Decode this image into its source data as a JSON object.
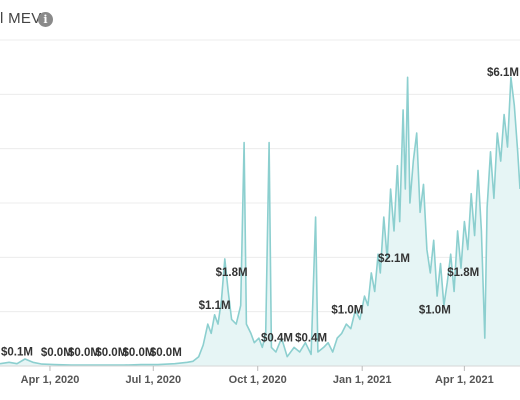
{
  "header": {
    "title": "l MEV",
    "info_icon": "info-icon",
    "info_glyph": "i"
  },
  "chart_data": {
    "type": "area",
    "title": "l MEV",
    "xlabel": "",
    "ylabel": "",
    "grid": true,
    "color": "#8ccfcf",
    "fill": "#e6f5f5",
    "x_range": [
      "2020-02-17",
      "2021-05-20"
    ],
    "y_range": [
      0,
      7.0
    ],
    "x_ticks": [
      {
        "date": "2020-04-01",
        "label": "Apr 1, 2020"
      },
      {
        "date": "2020-07-01",
        "label": "Jul 1, 2020"
      },
      {
        "date": "2020-10-01",
        "label": "Oct 1, 2020"
      },
      {
        "date": "2021-01-01",
        "label": "Jan 1, 2021"
      },
      {
        "date": "2021-04-01",
        "label": "Apr 1, 2021"
      }
    ],
    "series": [
      {
        "points": [
          [
            "2020-02-17",
            0.05
          ],
          [
            "2020-02-25",
            0.08
          ],
          [
            "2020-03-03",
            0.05
          ],
          [
            "2020-03-10",
            0.15
          ],
          [
            "2020-03-17",
            0.08
          ],
          [
            "2020-03-25",
            0.04
          ],
          [
            "2020-04-05",
            0.03
          ],
          [
            "2020-04-20",
            0.02
          ],
          [
            "2020-05-05",
            0.02
          ],
          [
            "2020-05-20",
            0.02
          ],
          [
            "2020-06-05",
            0.02
          ],
          [
            "2020-06-20",
            0.03
          ],
          [
            "2020-07-05",
            0.03
          ],
          [
            "2020-07-20",
            0.05
          ],
          [
            "2020-07-31",
            0.08
          ],
          [
            "2020-08-05",
            0.1
          ],
          [
            "2020-08-10",
            0.2
          ],
          [
            "2020-08-14",
            0.45
          ],
          [
            "2020-08-18",
            0.9
          ],
          [
            "2020-08-21",
            0.7
          ],
          [
            "2020-08-24",
            1.1
          ],
          [
            "2020-08-27",
            0.9
          ],
          [
            "2020-08-30",
            1.4
          ],
          [
            "2020-09-02",
            2.3
          ],
          [
            "2020-09-05",
            1.6
          ],
          [
            "2020-09-08",
            1.0
          ],
          [
            "2020-09-12",
            0.9
          ],
          [
            "2020-09-16",
            1.3
          ],
          [
            "2020-09-19",
            4.8
          ],
          [
            "2020-09-21",
            0.9
          ],
          [
            "2020-09-25",
            0.7
          ],
          [
            "2020-09-28",
            0.5
          ],
          [
            "2020-10-02",
            0.6
          ],
          [
            "2020-10-05",
            0.4
          ],
          [
            "2020-10-08",
            0.7
          ],
          [
            "2020-10-11",
            4.8
          ],
          [
            "2020-10-13",
            0.4
          ],
          [
            "2020-10-17",
            0.3
          ],
          [
            "2020-10-22",
            0.6
          ],
          [
            "2020-10-27",
            0.2
          ],
          [
            "2020-11-02",
            0.4
          ],
          [
            "2020-11-07",
            0.3
          ],
          [
            "2020-11-12",
            0.5
          ],
          [
            "2020-11-17",
            0.25
          ],
          [
            "2020-11-21",
            3.2
          ],
          [
            "2020-11-23",
            0.3
          ],
          [
            "2020-11-28",
            0.4
          ],
          [
            "2020-12-02",
            0.5
          ],
          [
            "2020-12-06",
            0.3
          ],
          [
            "2020-12-10",
            0.6
          ],
          [
            "2020-12-14",
            0.7
          ],
          [
            "2020-12-18",
            0.9
          ],
          [
            "2020-12-22",
            0.8
          ],
          [
            "2020-12-26",
            1.2
          ],
          [
            "2020-12-30",
            1.0
          ],
          [
            "2021-01-03",
            1.5
          ],
          [
            "2021-01-06",
            1.3
          ],
          [
            "2021-01-09",
            2.0
          ],
          [
            "2021-01-12",
            1.6
          ],
          [
            "2021-01-15",
            2.4
          ],
          [
            "2021-01-17",
            2.0
          ],
          [
            "2021-01-20",
            3.2
          ],
          [
            "2021-01-23",
            2.3
          ],
          [
            "2021-01-26",
            3.8
          ],
          [
            "2021-01-29",
            2.9
          ],
          [
            "2021-02-01",
            4.3
          ],
          [
            "2021-02-03",
            3.1
          ],
          [
            "2021-02-06",
            5.5
          ],
          [
            "2021-02-08",
            3.8
          ],
          [
            "2021-02-10",
            6.2
          ],
          [
            "2021-02-12",
            3.5
          ],
          [
            "2021-02-15",
            4.4
          ],
          [
            "2021-02-18",
            5.0
          ],
          [
            "2021-02-21",
            3.3
          ],
          [
            "2021-02-24",
            3.9
          ],
          [
            "2021-02-27",
            2.5
          ],
          [
            "2021-03-02",
            2.0
          ],
          [
            "2021-03-05",
            2.7
          ],
          [
            "2021-03-08",
            1.5
          ],
          [
            "2021-03-11",
            2.2
          ],
          [
            "2021-03-14",
            1.3
          ],
          [
            "2021-03-17",
            1.8
          ],
          [
            "2021-03-20",
            2.4
          ],
          [
            "2021-03-23",
            1.6
          ],
          [
            "2021-03-26",
            2.9
          ],
          [
            "2021-03-29",
            2.1
          ],
          [
            "2021-04-01",
            3.1
          ],
          [
            "2021-04-04",
            2.5
          ],
          [
            "2021-04-07",
            3.7
          ],
          [
            "2021-04-10",
            2.8
          ],
          [
            "2021-04-13",
            4.2
          ],
          [
            "2021-04-16",
            2.9
          ],
          [
            "2021-04-19",
            0.6
          ],
          [
            "2021-04-21",
            3.4
          ],
          [
            "2021-04-24",
            4.6
          ],
          [
            "2021-04-27",
            3.6
          ],
          [
            "2021-04-30",
            5.0
          ],
          [
            "2021-05-03",
            4.4
          ],
          [
            "2021-05-06",
            5.4
          ],
          [
            "2021-05-09",
            4.7
          ],
          [
            "2021-05-12",
            6.2
          ],
          [
            "2021-05-15",
            5.6
          ],
          [
            "2021-05-18",
            4.6
          ],
          [
            "2021-05-20",
            3.8
          ]
        ]
      }
    ],
    "annotations": [
      {
        "date": "2020-02-20",
        "value": 0.1,
        "label": "$0.1M"
      },
      {
        "date": "2020-04-07",
        "value": 0.0,
        "label": "$0.0M"
      },
      {
        "date": "2020-05-01",
        "value": 0.0,
        "label": "$0.0M"
      },
      {
        "date": "2020-05-25",
        "value": 0.0,
        "label": "$0.0M"
      },
      {
        "date": "2020-06-18",
        "value": 0.0,
        "label": "$0.0M"
      },
      {
        "date": "2020-07-12",
        "value": 0.0,
        "label": "$0.0M"
      },
      {
        "date": "2020-08-24",
        "value": 1.1,
        "label": "$1.1M"
      },
      {
        "date": "2020-09-08",
        "value": 1.8,
        "label": "$1.8M"
      },
      {
        "date": "2020-10-18",
        "value": 0.4,
        "label": "$0.4M"
      },
      {
        "date": "2020-11-17",
        "value": 0.4,
        "label": "$0.4M"
      },
      {
        "date": "2020-12-19",
        "value": 1.0,
        "label": "$1.0M"
      },
      {
        "date": "2021-01-29",
        "value": 2.1,
        "label": "$2.1M"
      },
      {
        "date": "2021-03-06",
        "value": 1.0,
        "label": "$1.0M"
      },
      {
        "date": "2021-03-31",
        "value": 1.8,
        "label": "$1.8M"
      },
      {
        "date": "2021-05-14",
        "value": 6.1,
        "label": "$6.1M"
      }
    ]
  }
}
